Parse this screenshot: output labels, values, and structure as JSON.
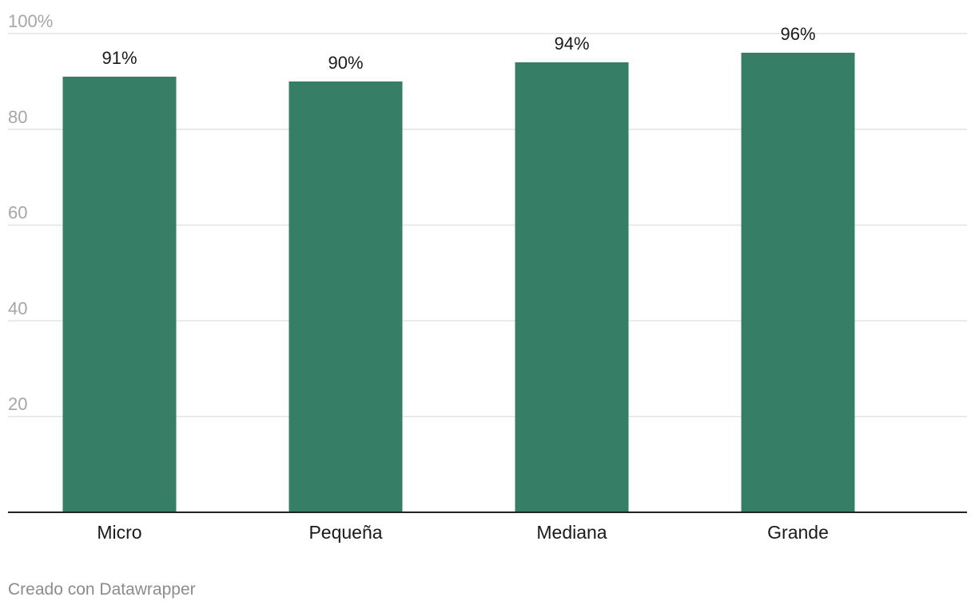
{
  "chart_data": {
    "type": "bar",
    "categories": [
      "Micro",
      "Pequeña",
      "Mediana",
      "Grande"
    ],
    "values": [
      91,
      90,
      94,
      96
    ],
    "data_labels": [
      "91%",
      "90%",
      "94%",
      "96%"
    ],
    "y_ticks": [
      20,
      40,
      60,
      80,
      100
    ],
    "y_tick_labels": [
      "20",
      "40",
      "60",
      "80",
      "100%"
    ],
    "ylim": [
      0,
      100
    ],
    "grid": true,
    "colors": {
      "bar": "#377e66",
      "grid": "#e3e3e3",
      "tick_text": "#a6a6a6",
      "baseline": "#222222",
      "label_text": "#1a1a1a"
    }
  },
  "footer": {
    "credit": "Creado con Datawrapper"
  }
}
